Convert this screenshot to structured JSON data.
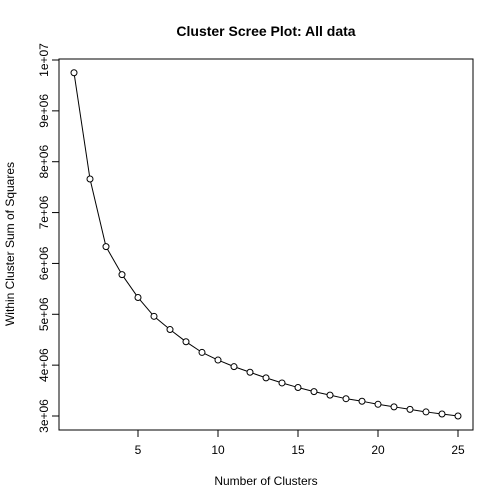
{
  "chart_data": {
    "type": "line",
    "title": "Cluster Scree Plot:  All data",
    "xlabel": "Number of Clusters",
    "ylabel": "Within Cluster Sum of Squares",
    "xlim": [
      1,
      25
    ],
    "ylim": [
      3000000,
      10000000
    ],
    "xticks": [
      5,
      10,
      15,
      20,
      25
    ],
    "xtick_labels": [
      "5",
      "10",
      "15",
      "20",
      "25"
    ],
    "yticks": [
      3000000,
      4000000,
      5000000,
      6000000,
      7000000,
      8000000,
      9000000,
      10000000
    ],
    "ytick_labels": [
      "3e+06",
      "4e+06",
      "5e+06",
      "6e+06",
      "7e+06",
      "8e+06",
      "9e+06",
      "1e+07"
    ],
    "grid": false,
    "markers": "open-circle",
    "x": [
      1,
      2,
      3,
      4,
      5,
      6,
      7,
      8,
      9,
      10,
      11,
      12,
      13,
      14,
      15,
      16,
      17,
      18,
      19,
      20,
      21,
      22,
      23,
      24,
      25
    ],
    "y": [
      9750000,
      7660000,
      6330000,
      5780000,
      5330000,
      4960000,
      4700000,
      4460000,
      4250000,
      4100000,
      3970000,
      3860000,
      3750000,
      3650000,
      3560000,
      3480000,
      3410000,
      3340000,
      3290000,
      3230000,
      3180000,
      3130000,
      3080000,
      3040000,
      3000000
    ]
  }
}
